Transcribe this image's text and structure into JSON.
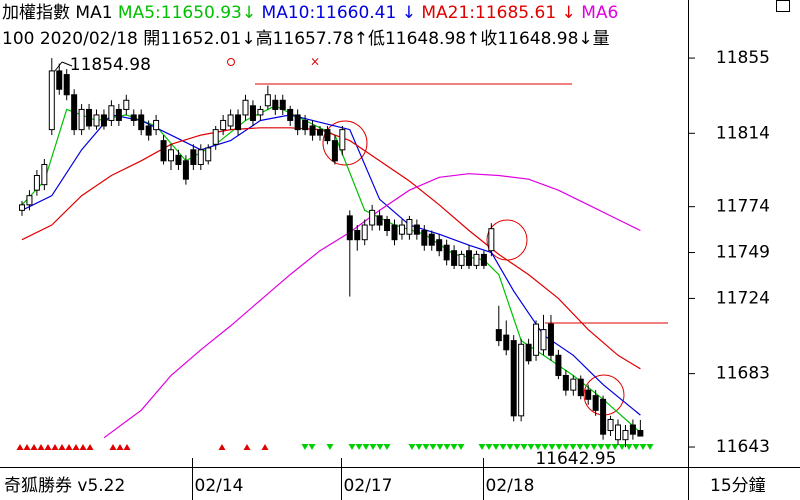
{
  "header": {
    "line1": [
      {
        "text": "加權指數 MA1 ",
        "color": "#000000"
      },
      {
        "text": "MA5:11650.93↓ ",
        "color": "#00c000"
      },
      {
        "text": "MA10:11660.41 ↓ ",
        "color": "#0000e0"
      },
      {
        "text": "MA21:11685.61 ↓ ",
        "color": "#e00000"
      },
      {
        "text": "MA6",
        "color": "#e000e0"
      }
    ],
    "line2": "100 2020/02/18 開11652.01↓高11657.78↑低11648.98↑收11648.98↓量"
  },
  "footer": {
    "app": "奇狐勝券 v5.22",
    "period": "15分鐘"
  },
  "chart_data": {
    "type": "candlestick",
    "categories": [
      null,
      null,
      null,
      null,
      null,
      null,
      null,
      null,
      null,
      null,
      null,
      null,
      null,
      null,
      null,
      null,
      null,
      null,
      null,
      null,
      null,
      null,
      null,
      null,
      null,
      "02/14",
      null,
      null,
      null,
      null,
      null,
      null,
      null,
      null,
      null,
      null,
      null,
      null,
      null,
      null,
      null,
      null,
      null,
      null,
      null,
      "02/17",
      null,
      null,
      null,
      null,
      null,
      null,
      null,
      null,
      null,
      null,
      null,
      null,
      null,
      null,
      null,
      null,
      null,
      null,
      "02/18",
      null,
      null,
      null,
      null,
      null,
      null,
      null,
      null,
      null,
      null,
      null,
      null,
      null,
      null,
      null,
      null,
      null,
      null,
      null
    ],
    "open": [
      11772,
      11775,
      11783,
      11786,
      11816,
      11848,
      11846,
      11835,
      11816,
      11827,
      11818,
      11824,
      11821,
      11827,
      11827,
      11824,
      11824,
      11818,
      11816,
      11810,
      11799,
      11802,
      11799,
      11805,
      11797,
      11799,
      11808,
      11816,
      11818,
      11824,
      11824,
      11829,
      11824,
      11829,
      11832,
      11832,
      11827,
      11824,
      11821,
      11818,
      11816,
      11816,
      11810,
      11805,
      11769,
      11761,
      11756,
      11764,
      11769,
      11767,
      11764,
      11759,
      11759,
      11764,
      11761,
      11759,
      11756,
      11753,
      11750,
      11742,
      11750,
      11742,
      11748,
      11750,
      11707,
      11704,
      11701,
      11660,
      11699,
      11693,
      11696,
      11710,
      11693,
      11682,
      11674,
      11680,
      11674,
      11671,
      11669,
      11652,
      11647,
      11647,
      11655,
      11652.01
    ],
    "high": [
      11777,
      11783,
      11794,
      11800,
      11854.98,
      11852,
      11849,
      11838,
      11830,
      11830,
      11827,
      11827,
      11832,
      11830,
      11835,
      11827,
      11827,
      11821,
      11824,
      11813,
      11808,
      11805,
      11802,
      11808,
      11808,
      11808,
      11818,
      11824,
      11827,
      11827,
      11835,
      11832,
      11829,
      11840,
      11835,
      11835,
      11829,
      11827,
      11824,
      11821,
      11818,
      11818,
      11813,
      11818,
      11772,
      11764,
      11767,
      11775,
      11772,
      11769,
      11767,
      11767,
      11769,
      11767,
      11764,
      11761,
      11759,
      11756,
      11753,
      11750,
      11753,
      11750,
      11750,
      11765,
      11720,
      11712,
      11704,
      11702,
      11702,
      11712,
      11715,
      11715,
      11696,
      11685,
      11682,
      11682,
      11677,
      11674,
      11671,
      11660,
      11658,
      11655,
      11658,
      11657.78
    ],
    "low": [
      11769,
      11772,
      11780,
      11783,
      11813,
      11835,
      11832,
      11813,
      11813,
      11816,
      11816,
      11816,
      11818,
      11818,
      11824,
      11818,
      11813,
      11810,
      11813,
      11797,
      11794,
      11794,
      11786,
      11794,
      11794,
      11797,
      11805,
      11813,
      11816,
      11813,
      11821,
      11818,
      11821,
      11827,
      11824,
      11824,
      11818,
      11813,
      11813,
      11810,
      11810,
      11808,
      11797,
      11802,
      11725,
      11750,
      11753,
      11761,
      11761,
      11758,
      11753,
      11756,
      11756,
      11756,
      11750,
      11750,
      11747,
      11742,
      11740,
      11740,
      11740,
      11740,
      11740,
      11747,
      11698,
      11693,
      11657,
      11657,
      11688,
      11690,
      11693,
      11690,
      11680,
      11671,
      11671,
      11669,
      11666,
      11660,
      11647,
      11649,
      11644,
      11642.95,
      11647,
      11648.98
    ],
    "close": [
      11775,
      11780,
      11791,
      11797,
      11848,
      11838,
      11835,
      11816,
      11827,
      11818,
      11824,
      11818,
      11829,
      11821,
      11832,
      11821,
      11816,
      11813,
      11821,
      11799,
      11805,
      11797,
      11789,
      11797,
      11805,
      11806,
      11816,
      11821,
      11824,
      11816,
      11832,
      11821,
      11827,
      11835,
      11827,
      11827,
      11821,
      11816,
      11816,
      11813,
      11813,
      11810,
      11799,
      11816,
      11756,
      11756,
      11764,
      11772,
      11764,
      11761,
      11756,
      11764,
      11767,
      11759,
      11753,
      11753,
      11750,
      11745,
      11742,
      11748,
      11742,
      11748,
      11742,
      11762,
      11701,
      11696,
      11660,
      11699,
      11690,
      11710,
      11707,
      11693,
      11682,
      11674,
      11680,
      11671,
      11669,
      11663,
      11650,
      11658,
      11655,
      11652,
      11650,
      11648.98
    ],
    "up_color": "#ffffff",
    "down_color": "#000000",
    "ylim": [
      11633.2,
      11859.4
    ],
    "yticks": [
      11855,
      11814,
      11774,
      11749,
      11724,
      11683,
      11643
    ],
    "ma": [
      {
        "color": "#00c000",
        "x": [
          0,
          3,
          6,
          10,
          14,
          18,
          22,
          26,
          30,
          34,
          38,
          42,
          46,
          50,
          54,
          58,
          62,
          64,
          67,
          70,
          74,
          78,
          83
        ],
        "values": [
          11775,
          11788,
          11827,
          11821,
          11824,
          11818,
          11799,
          11808,
          11821,
          11829,
          11821,
          11813,
          11772,
          11764,
          11759,
          11748,
          11745,
          11737,
          11701,
          11693,
          11682,
          11669,
          11650.93
        ]
      },
      {
        "color": "#0000e0",
        "x": [
          0,
          4,
          8,
          12,
          16,
          20,
          24,
          28,
          32,
          36,
          40,
          44,
          48,
          52,
          56,
          60,
          63,
          66,
          70,
          74,
          78,
          83
        ],
        "values": [
          11772,
          11780,
          11805,
          11824,
          11821,
          11813,
          11805,
          11810,
          11821,
          11824,
          11820,
          11816,
          11778,
          11764,
          11759,
          11753,
          11749,
          11728,
          11704,
          11693,
          11677,
          11660.41
        ]
      },
      {
        "color": "#e00000",
        "x": [
          0,
          4,
          8,
          12,
          16,
          20,
          24,
          28,
          32,
          36,
          40,
          44,
          48,
          52,
          56,
          60,
          64,
          68,
          72,
          76,
          80,
          83
        ],
        "values": [
          11756,
          11764,
          11780,
          11791,
          11799,
          11808,
          11813,
          11816,
          11817,
          11817,
          11816,
          11810,
          11799,
          11788,
          11775,
          11761,
          11748,
          11737,
          11724,
          11707,
          11693,
          11685.61
        ]
      },
      {
        "color": "#e000e0",
        "x": [
          11,
          16,
          20,
          24,
          28,
          32,
          36,
          40,
          44,
          48,
          52,
          56,
          60,
          64,
          68,
          72,
          76,
          80,
          83
        ],
        "values": [
          11648,
          11663,
          11682,
          11696,
          11709,
          11723,
          11737,
          11750,
          11760,
          11772,
          11783,
          11790,
          11792,
          11791,
          11789,
          11783,
          11775,
          11767,
          11761
        ]
      }
    ],
    "annotations": [
      {
        "text": "11854.98"
      },
      {
        "text": "11642.95"
      }
    ]
  }
}
